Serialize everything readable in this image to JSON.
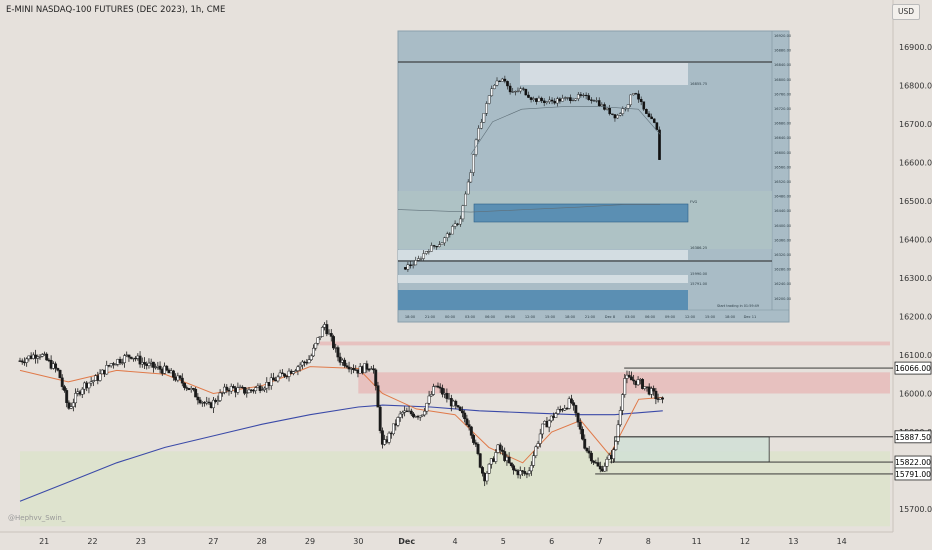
{
  "header": {
    "title": "E-MINI NASDAQ-100 FUTURES (DEC 2023), 1h, CME",
    "currency_button": "USD"
  },
  "watermark": "@Hephvv_Swin_",
  "colors": {
    "background": "#e6e1dc",
    "bull_candle": "#ffffff",
    "bear_candle": "#1a1a1a",
    "ema_fast": "#e07a4a",
    "ma_slow": "#3b4aa8",
    "supply_zone": "#e8a8a8",
    "demand_zone_bottom": "#dde3cc",
    "fvg_box": "#cfe0d6",
    "inset_bg": "#a9bcc6",
    "inset_blue_zone": "#5b8fb3"
  },
  "chart_data": {
    "type": "candlestick",
    "title": "E-MINI NASDAQ-100 FUTURES (DEC 2023), 1h, CME",
    "xlabel": "",
    "ylabel": "",
    "ylim": [
      15655,
      16990
    ],
    "y_ticks": [
      15700,
      15800,
      15900,
      16000,
      16100,
      16200,
      16300,
      16400,
      16500,
      16600,
      16700,
      16800,
      16900
    ],
    "x_ticks": [
      {
        "label": "21",
        "x": 0.5
      },
      {
        "label": "22",
        "x": 1.5
      },
      {
        "label": "23",
        "x": 2.5
      },
      {
        "label": "27",
        "x": 4.0
      },
      {
        "label": "28",
        "x": 5.0
      },
      {
        "label": "29",
        "x": 6.0
      },
      {
        "label": "30",
        "x": 7.0
      },
      {
        "label": "Dec",
        "x": 8.0
      },
      {
        "label": "4",
        "x": 9.0
      },
      {
        "label": "5",
        "x": 10.0
      },
      {
        "label": "6",
        "x": 11.0
      },
      {
        "label": "7",
        "x": 12.0
      },
      {
        "label": "8",
        "x": 13.0
      },
      {
        "label": "11",
        "x": 14.0
      },
      {
        "label": "12",
        "x": 15.0
      },
      {
        "label": "13",
        "x": 16.0
      },
      {
        "label": "14",
        "x": 17.0
      }
    ],
    "x_range": [
      0,
      18
    ],
    "price_path": [
      [
        0.0,
        16085
      ],
      [
        0.4,
        16105
      ],
      [
        0.8,
        16055
      ],
      [
        1.0,
        15960
      ],
      [
        1.3,
        16020
      ],
      [
        1.6,
        16040
      ],
      [
        1.9,
        16080
      ],
      [
        2.3,
        16100
      ],
      [
        2.6,
        16075
      ],
      [
        3.0,
        16060
      ],
      [
        3.4,
        16025
      ],
      [
        3.9,
        15965
      ],
      [
        4.3,
        16015
      ],
      [
        4.7,
        16005
      ],
      [
        5.2,
        16030
      ],
      [
        5.6,
        16060
      ],
      [
        6.0,
        16090
      ],
      [
        6.3,
        16180
      ],
      [
        6.6,
        16090
      ],
      [
        7.0,
        16060
      ],
      [
        7.3,
        16075
      ],
      [
        7.5,
        15860
      ],
      [
        7.9,
        15950
      ],
      [
        8.3,
        15945
      ],
      [
        8.6,
        16020
      ],
      [
        8.9,
        15980
      ],
      [
        9.3,
        15920
      ],
      [
        9.6,
        15780
      ],
      [
        9.9,
        15860
      ],
      [
        10.2,
        15800
      ],
      [
        10.5,
        15790
      ],
      [
        10.8,
        15910
      ],
      [
        11.1,
        15950
      ],
      [
        11.4,
        15980
      ],
      [
        11.7,
        15860
      ],
      [
        12.0,
        15800
      ],
      [
        12.3,
        15850
      ],
      [
        12.5,
        16040
      ],
      [
        12.8,
        16030
      ],
      [
        13.0,
        16010
      ],
      [
        13.3,
        15975
      ]
    ],
    "ema_fast": [
      [
        0.0,
        16060
      ],
      [
        1.0,
        16030
      ],
      [
        2.0,
        16060
      ],
      [
        3.0,
        16050
      ],
      [
        4.0,
        16000
      ],
      [
        5.0,
        16020
      ],
      [
        6.0,
        16070
      ],
      [
        7.0,
        16065
      ],
      [
        7.5,
        16000
      ],
      [
        8.2,
        15960
      ],
      [
        9.0,
        15945
      ],
      [
        9.7,
        15860
      ],
      [
        10.4,
        15820
      ],
      [
        11.0,
        15900
      ],
      [
        11.6,
        15930
      ],
      [
        12.2,
        15840
      ],
      [
        12.8,
        15985
      ],
      [
        13.3,
        15990
      ]
    ],
    "ma_slow": [
      [
        0.0,
        15720
      ],
      [
        1.0,
        15770
      ],
      [
        2.0,
        15820
      ],
      [
        3.0,
        15860
      ],
      [
        4.0,
        15890
      ],
      [
        5.0,
        15920
      ],
      [
        6.0,
        15945
      ],
      [
        7.0,
        15965
      ],
      [
        7.5,
        15970
      ],
      [
        8.5,
        15965
      ],
      [
        9.5,
        15955
      ],
      [
        10.5,
        15950
      ],
      [
        11.5,
        15945
      ],
      [
        12.3,
        15945
      ],
      [
        13.3,
        15955
      ]
    ],
    "zones": [
      {
        "kind": "supply",
        "x0": 6.2,
        "x1": 18.0,
        "y0": 16125,
        "y1": 16135
      },
      {
        "kind": "supply",
        "x0": 7.0,
        "x1": 18.0,
        "y0": 16000,
        "y1": 16055
      },
      {
        "kind": "demand",
        "x0": 0.0,
        "x1": 18.0,
        "y0": 15655,
        "y1": 15850
      },
      {
        "kind": "fvg",
        "x0": 12.3,
        "x1": 15.5,
        "y0": 15822,
        "y1": 15887.5
      }
    ],
    "levels": [
      {
        "value": 16066.0,
        "label": "16066.00",
        "x0": 12.5
      },
      {
        "value": 15887.5,
        "label": "15887.50",
        "x0": 12.3
      },
      {
        "value": 15822.0,
        "label": "15822.00",
        "x0": 12.2
      },
      {
        "value": 15791.0,
        "label": "15791.00",
        "x0": 11.9
      }
    ],
    "inset": {
      "y_ticks": [
        "16920.00",
        "16880.00",
        "16840.00",
        "16800.00",
        "16760.00",
        "16720.00",
        "16680.00",
        "16640.00",
        "16600.00",
        "16560.00",
        "16520.00",
        "16480.00",
        "16440.00",
        "16400.00",
        "16360.00",
        "16320.00",
        "16280.00",
        "16240.00",
        "16200.00"
      ],
      "x_ticks": [
        "18:00",
        "21:00",
        "00:00",
        "03:00",
        "06:00",
        "09:00",
        "12:00",
        "15:00",
        "18:00",
        "21:00",
        "Dec 8",
        "03:00",
        "06:00",
        "09:00",
        "12:00",
        "15:00",
        "18:00",
        "Dec 11"
      ],
      "zone_labels": [
        "16855.75",
        "FVG",
        "16386.25",
        "15990.00",
        "15791.00"
      ],
      "note": "Start trading in 01:59:49",
      "price_path": [
        [
          0.02,
          0.17
        ],
        [
          0.05,
          0.19
        ],
        [
          0.08,
          0.24
        ],
        [
          0.12,
          0.27
        ],
        [
          0.17,
          0.36
        ],
        [
          0.2,
          0.55
        ],
        [
          0.22,
          0.72
        ],
        [
          0.24,
          0.8
        ],
        [
          0.26,
          0.9
        ],
        [
          0.29,
          0.93
        ],
        [
          0.31,
          0.86
        ],
        [
          0.34,
          0.88
        ],
        [
          0.37,
          0.84
        ],
        [
          0.41,
          0.83
        ],
        [
          0.46,
          0.84
        ],
        [
          0.5,
          0.85
        ],
        [
          0.54,
          0.84
        ],
        [
          0.57,
          0.8
        ],
        [
          0.6,
          0.77
        ],
        [
          0.63,
          0.82
        ],
        [
          0.65,
          0.88
        ],
        [
          0.68,
          0.78
        ],
        [
          0.71,
          0.73
        ],
        [
          0.72,
          0.58
        ]
      ]
    }
  }
}
